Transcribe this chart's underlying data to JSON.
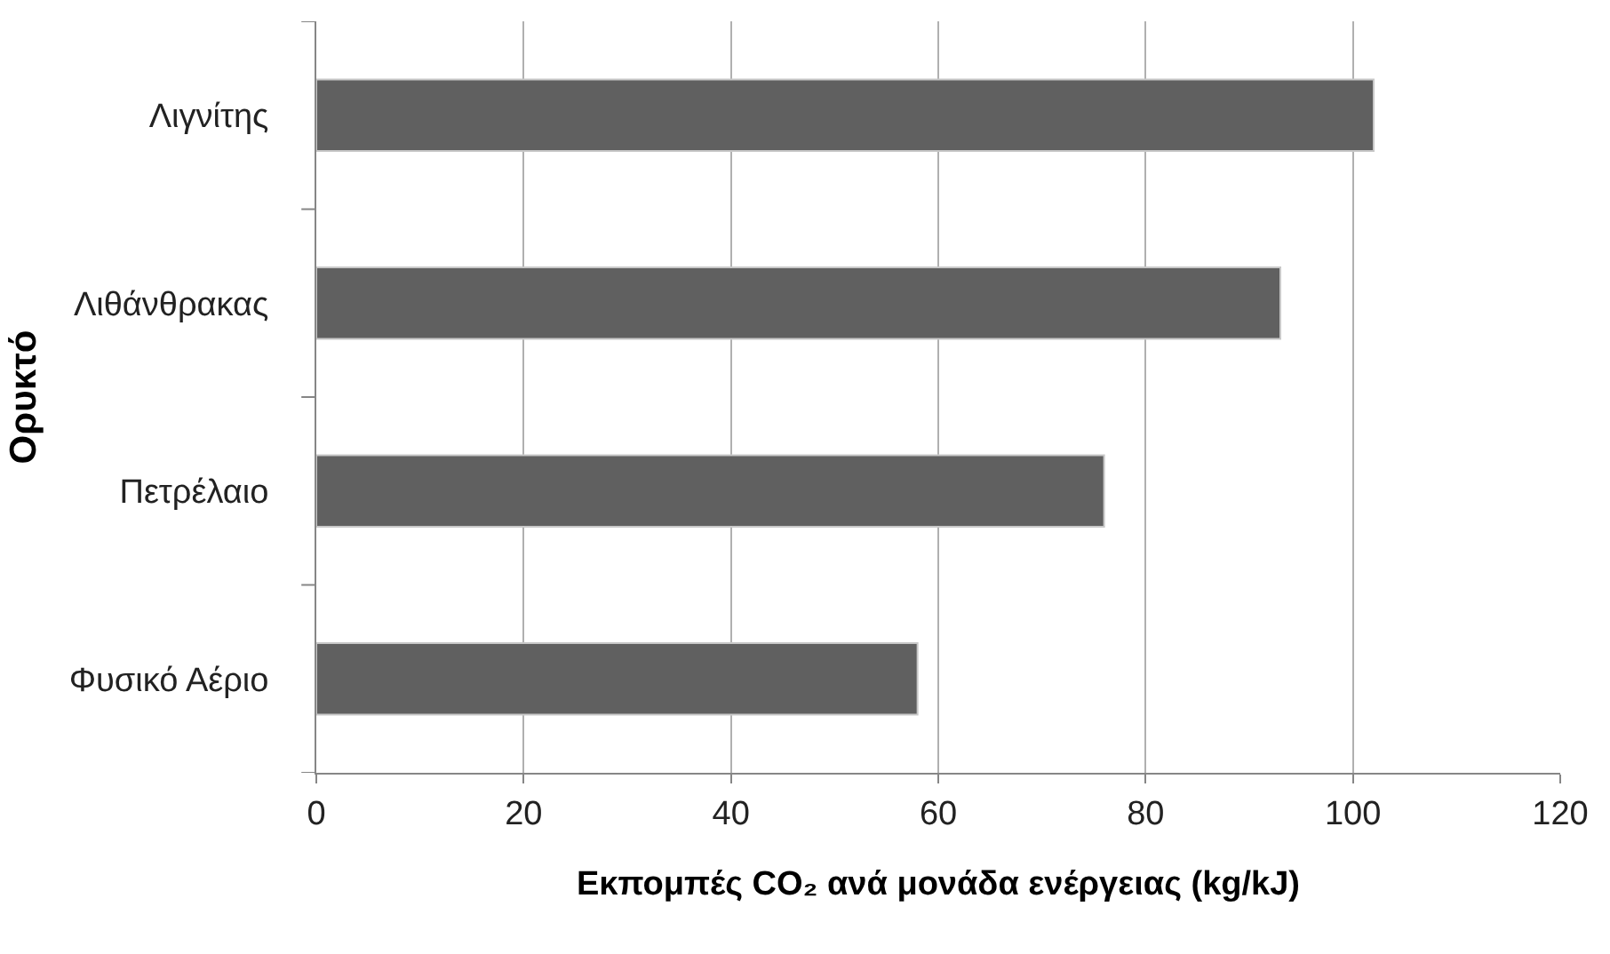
{
  "chart_data": {
    "type": "bar",
    "orientation": "horizontal",
    "categories": [
      "Λιγνίτης",
      "Λιθάνθρακας",
      "Πετρέλαιο",
      "Φυσικό Αέριο"
    ],
    "values": [
      102,
      93,
      76,
      58
    ],
    "color": "#606060",
    "xlabel": "Εκπομπές CO₂ ανά μονάδα ενέργειας (kg/kJ)",
    "ylabel": "Ορυκτό",
    "xlim": [
      0,
      120
    ],
    "xticks": [
      0,
      20,
      40,
      60,
      80,
      100,
      120
    ],
    "grid": "x"
  }
}
